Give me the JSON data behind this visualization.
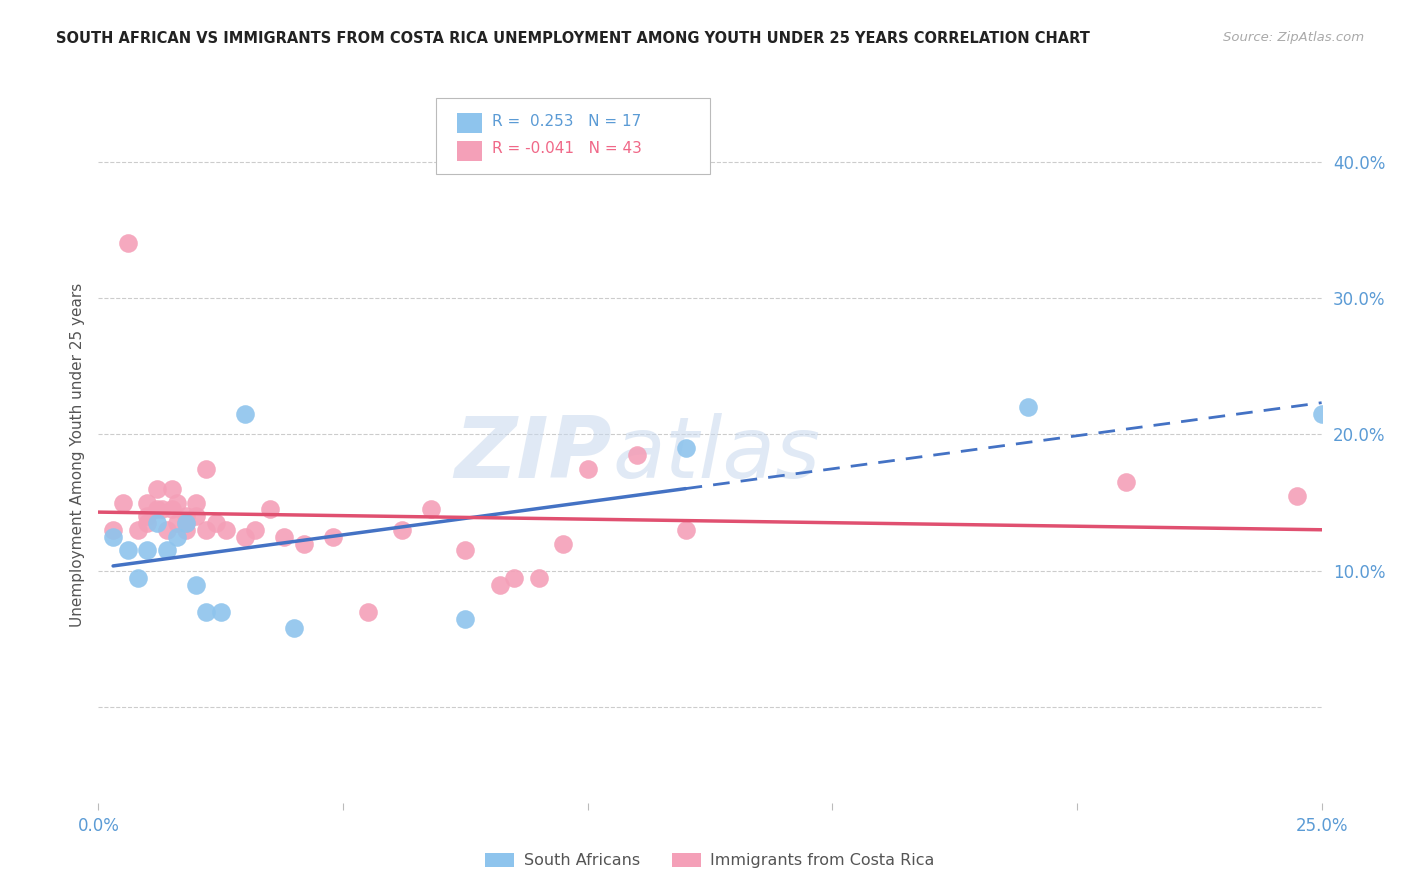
{
  "title": "SOUTH AFRICAN VS IMMIGRANTS FROM COSTA RICA UNEMPLOYMENT AMONG YOUTH UNDER 25 YEARS CORRELATION CHART",
  "source": "Source: ZipAtlas.com",
  "ylabel": "Unemployment Among Youth under 25 years",
  "x_min": 0.0,
  "x_max": 0.25,
  "y_min": -0.07,
  "y_max": 0.44,
  "x_ticks": [
    0.0,
    0.05,
    0.1,
    0.15,
    0.2,
    0.25
  ],
  "x_tick_labels": [
    "0.0%",
    "",
    "",
    "",
    "",
    "25.0%"
  ],
  "y_ticks_right": [
    0.1,
    0.2,
    0.3,
    0.4
  ],
  "y_tick_labels_right": [
    "10.0%",
    "20.0%",
    "30.0%",
    "40.0%"
  ],
  "south_africans_R": 0.253,
  "south_africans_N": 17,
  "immigrants_R": -0.041,
  "immigrants_N": 43,
  "south_african_color": "#8EC4ED",
  "immigrant_color": "#F4A0B8",
  "trend_blue_color": "#4472C4",
  "trend_pink_color": "#E05070",
  "watermark_part1": "ZIP",
  "watermark_part2": "atlas",
  "south_africans_x": [
    0.003,
    0.006,
    0.008,
    0.01,
    0.012,
    0.014,
    0.016,
    0.018,
    0.02,
    0.022,
    0.025,
    0.03,
    0.04,
    0.075,
    0.12,
    0.19,
    0.25
  ],
  "south_africans_y": [
    0.125,
    0.115,
    0.095,
    0.115,
    0.135,
    0.115,
    0.125,
    0.135,
    0.09,
    0.07,
    0.07,
    0.215,
    0.058,
    0.065,
    0.19,
    0.22,
    0.215
  ],
  "immigrants_x": [
    0.003,
    0.005,
    0.006,
    0.008,
    0.01,
    0.01,
    0.01,
    0.012,
    0.012,
    0.013,
    0.014,
    0.015,
    0.015,
    0.016,
    0.016,
    0.018,
    0.018,
    0.018,
    0.02,
    0.02,
    0.022,
    0.022,
    0.024,
    0.026,
    0.03,
    0.032,
    0.035,
    0.038,
    0.042,
    0.048,
    0.055,
    0.062,
    0.068,
    0.075,
    0.082,
    0.085,
    0.09,
    0.095,
    0.1,
    0.11,
    0.12,
    0.21,
    0.245
  ],
  "immigrants_y": [
    0.13,
    0.15,
    0.34,
    0.13,
    0.135,
    0.14,
    0.15,
    0.16,
    0.145,
    0.145,
    0.13,
    0.145,
    0.16,
    0.135,
    0.15,
    0.14,
    0.13,
    0.135,
    0.14,
    0.15,
    0.13,
    0.175,
    0.135,
    0.13,
    0.125,
    0.13,
    0.145,
    0.125,
    0.12,
    0.125,
    0.07,
    0.13,
    0.145,
    0.115,
    0.09,
    0.095,
    0.095,
    0.12,
    0.175,
    0.185,
    0.13,
    0.165,
    0.155
  ],
  "sa_trend_x_solid_start": 0.003,
  "sa_trend_x_solid_end": 0.12,
  "sa_trend_x_dash_end": 0.25,
  "im_trend_x_start": 0.0,
  "im_trend_x_end": 0.25
}
